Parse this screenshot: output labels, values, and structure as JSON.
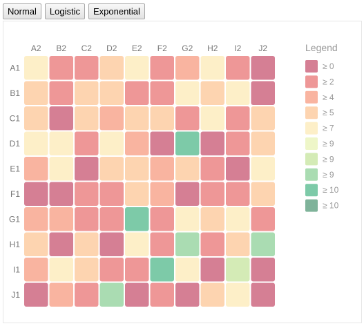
{
  "toolbar": {
    "buttons": [
      {
        "label": "Normal"
      },
      {
        "label": "Logistic"
      },
      {
        "label": "Exponential"
      }
    ]
  },
  "chart_data": {
    "type": "heatmap",
    "title": "",
    "xlabel": "",
    "ylabel": "",
    "grid": false,
    "legend_position": "right",
    "legend_title": "Legend",
    "x_categories": [
      "A2",
      "B2",
      "C2",
      "D2",
      "E2",
      "F2",
      "G2",
      "H2",
      "I2",
      "J2"
    ],
    "y_categories": [
      "A1",
      "B1",
      "C1",
      "D1",
      "E1",
      "F1",
      "G1",
      "H1",
      "I1",
      "J1"
    ],
    "legend": [
      {
        "label": "≥ 0",
        "color": "#d57f94"
      },
      {
        "label": "≥ 2",
        "color": "#ee9797"
      },
      {
        "label": "≥ 4",
        "color": "#f9b4a0"
      },
      {
        "label": "≥ 5",
        "color": "#fdd4b0"
      },
      {
        "label": "≥ 7",
        "color": "#fdefc8"
      },
      {
        "label": "≥ 9",
        "color": "#eef6c8"
      },
      {
        "label": "≥ 9",
        "color": "#d4ebb6"
      },
      {
        "label": "≥ 9",
        "color": "#aadcb2"
      },
      {
        "label": "≥ 10",
        "color": "#7dcaa8"
      },
      {
        "label": "≥ 10",
        "color": "#7fb39a"
      }
    ],
    "cells": [
      [
        4,
        1,
        1,
        3,
        4,
        1,
        2,
        4,
        1,
        0
      ],
      [
        3,
        1,
        3,
        3,
        1,
        1,
        4,
        3,
        4,
        0
      ],
      [
        3,
        0,
        3,
        2,
        3,
        3,
        1,
        4,
        1,
        3
      ],
      [
        4,
        4,
        1,
        4,
        2,
        0,
        8,
        0,
        1,
        3
      ],
      [
        2,
        4,
        0,
        3,
        3,
        2,
        3,
        1,
        0,
        4
      ],
      [
        0,
        0,
        1,
        1,
        3,
        2,
        0,
        1,
        1,
        3
      ],
      [
        2,
        2,
        1,
        1,
        8,
        1,
        4,
        3,
        4,
        1
      ],
      [
        3,
        0,
        3,
        0,
        4,
        1,
        7,
        1,
        3,
        7
      ],
      [
        2,
        4,
        3,
        1,
        1,
        8,
        4,
        0,
        6,
        0
      ],
      [
        0,
        2,
        1,
        7,
        0,
        1,
        0,
        3,
        4,
        0
      ]
    ]
  }
}
